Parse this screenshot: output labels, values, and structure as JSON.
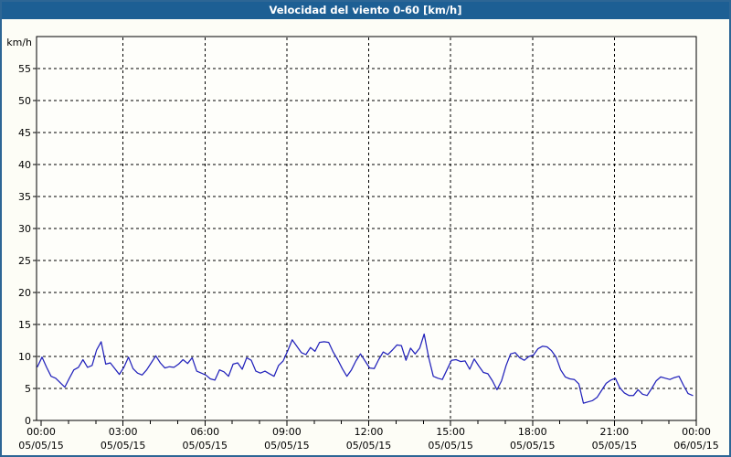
{
  "window": {
    "title": "Velocidad del viento 0-60 [km/h]"
  },
  "colors": {
    "titlebar_bg": "#1d5f94",
    "title_text": "#ffffff",
    "frame_border": "#2d6695",
    "page_bg": "#fdfdf6",
    "plot_bg": "#fefefa",
    "axis": "#000000",
    "grid": "#000000",
    "label_text": "#000000",
    "series_line": "#2222bb"
  },
  "chart_data": {
    "type": "line",
    "title": "Velocidad del viento 0-60 [km/h]",
    "ylabel": "km/h",
    "xlabel": "",
    "ylim": [
      0,
      60
    ],
    "ytick_step": 5,
    "ytick_labels": [
      "0",
      "5",
      "10",
      "15",
      "20",
      "25",
      "30",
      "35",
      "40",
      "45",
      "50",
      "55"
    ],
    "grid": "dashed",
    "legend_position": "none",
    "x_hours_span": 24,
    "x_minor_tick_every_hours": 1,
    "x_major_ticks": [
      {
        "hour": 0,
        "time": "00:00",
        "date": "05/05/15"
      },
      {
        "hour": 3,
        "time": "03:00",
        "date": "05/05/15"
      },
      {
        "hour": 6,
        "time": "06:00",
        "date": "05/05/15"
      },
      {
        "hour": 9,
        "time": "09:00",
        "date": "05/05/15"
      },
      {
        "hour": 12,
        "time": "12:00",
        "date": "05/05/15"
      },
      {
        "hour": 15,
        "time": "15:00",
        "date": "05/05/15"
      },
      {
        "hour": 18,
        "time": "18:00",
        "date": "05/05/15"
      },
      {
        "hour": 21,
        "time": "21:00",
        "date": "05/05/15"
      },
      {
        "hour": 24,
        "time": "00:00",
        "date": "06/05/15"
      }
    ],
    "series": [
      {
        "name": "Velocidad del viento",
        "unit": "km/h",
        "interval_minutes": 10,
        "values": [
          8.4,
          9.9,
          8.3,
          6.9,
          6.6,
          5.9,
          5.2,
          6.6,
          7.9,
          8.3,
          9.5,
          8.3,
          8.6,
          11.0,
          12.3,
          8.8,
          9.0,
          8.1,
          7.2,
          8.3,
          9.9,
          8.1,
          7.4,
          7.1,
          7.9,
          9.0,
          10.1,
          9.0,
          8.2,
          8.4,
          8.3,
          8.8,
          9.5,
          8.9,
          9.8,
          7.7,
          7.4,
          7.1,
          6.5,
          6.3,
          7.9,
          7.6,
          6.9,
          8.8,
          9.0,
          8.0,
          9.8,
          9.4,
          7.7,
          7.4,
          7.7,
          7.3,
          6.9,
          8.6,
          9.3,
          10.9,
          12.6,
          11.6,
          10.6,
          10.3,
          11.4,
          10.8,
          12.2,
          12.3,
          12.2,
          10.7,
          9.5,
          8.1,
          6.9,
          7.9,
          9.3,
          10.4,
          9.3,
          8.2,
          8.1,
          9.5,
          10.7,
          10.3,
          11.0,
          11.8,
          11.7,
          9.4,
          11.3,
          10.4,
          11.3,
          13.5,
          9.8,
          6.9,
          6.6,
          6.4,
          7.9,
          9.4,
          9.5,
          9.2,
          9.3,
          8.0,
          9.6,
          8.5,
          7.5,
          7.3,
          6.2,
          4.8,
          6.2,
          8.6,
          10.4,
          10.6,
          9.8,
          9.4,
          10.0,
          10.2,
          11.2,
          11.6,
          11.5,
          10.9,
          9.9,
          7.9,
          6.8,
          6.5,
          6.4,
          5.7,
          2.7,
          2.9,
          3.1,
          3.6,
          4.7,
          5.8,
          6.3,
          6.6,
          5.1,
          4.3,
          3.9,
          3.9,
          4.8,
          4.1,
          3.9,
          5.0,
          6.2,
          6.8,
          6.6,
          6.4,
          6.7,
          6.9,
          5.5,
          4.2,
          3.9
        ]
      }
    ]
  }
}
